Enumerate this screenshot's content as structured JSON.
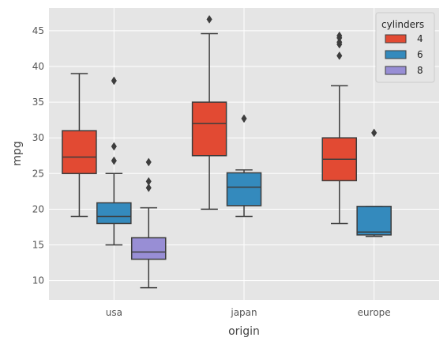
{
  "chart_data": {
    "type": "boxplot",
    "xlabel": "origin",
    "ylabel": "mpg",
    "categories": [
      "usa",
      "japan",
      "europe"
    ],
    "ylim": [
      7.3,
      48.2
    ],
    "yticks": [
      10,
      15,
      20,
      25,
      30,
      35,
      40,
      45
    ],
    "grid": true,
    "legend": {
      "title": "cylinders",
      "position": "top-right",
      "entries": [
        "4",
        "6",
        "8"
      ]
    },
    "series": [
      {
        "name": "4",
        "color": "#E24A33",
        "boxes": [
          {
            "category": "usa",
            "whisker_low": 19.0,
            "q1": 25.0,
            "median": 27.3,
            "q3": 31.0,
            "whisker_high": 39.0,
            "outliers": []
          },
          {
            "category": "japan",
            "whisker_low": 20.0,
            "q1": 27.5,
            "median": 32.0,
            "q3": 35.0,
            "whisker_high": 44.6,
            "outliers": [
              46.6
            ]
          },
          {
            "category": "europe",
            "whisker_low": 18.0,
            "q1": 24.0,
            "median": 27.0,
            "q3": 30.0,
            "whisker_high": 37.3,
            "outliers": [
              41.5,
              43.1,
              43.4,
              44.0,
              44.3
            ]
          }
        ]
      },
      {
        "name": "6",
        "color": "#348ABD",
        "boxes": [
          {
            "category": "usa",
            "whisker_low": 15.0,
            "q1": 18.0,
            "median": 19.0,
            "q3": 20.9,
            "whisker_high": 25.0,
            "outliers": [
              26.8,
              28.8,
              38.0
            ]
          },
          {
            "category": "japan",
            "whisker_low": 19.0,
            "q1": 20.5,
            "median": 23.1,
            "q3": 25.1,
            "whisker_high": 25.5,
            "outliers": [
              32.7
            ]
          },
          {
            "category": "europe",
            "whisker_low": 16.2,
            "q1": 16.4,
            "median": 16.8,
            "q3": 20.4,
            "whisker_high": 20.4,
            "outliers": [
              30.7
            ]
          }
        ]
      },
      {
        "name": "8",
        "color": "#988ED5",
        "boxes": [
          {
            "category": "usa",
            "whisker_low": 9.0,
            "q1": 13.0,
            "median": 14.0,
            "q3": 16.0,
            "whisker_high": 20.2,
            "outliers": [
              23.0,
              23.9,
              26.6
            ]
          }
        ]
      }
    ]
  }
}
